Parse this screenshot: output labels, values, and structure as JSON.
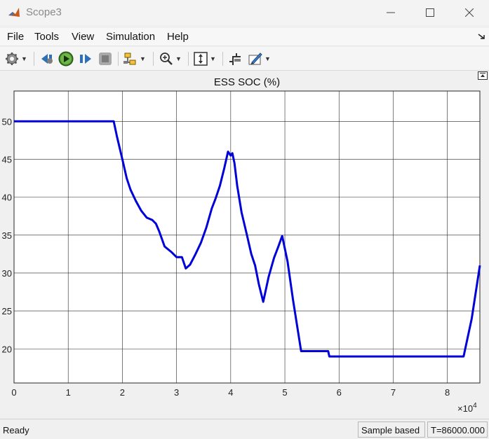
{
  "window": {
    "title": "Scope3",
    "buttons": {
      "minimize": "—",
      "maximize": "☐",
      "close": "✕"
    }
  },
  "menu": {
    "items": [
      "File",
      "Tools",
      "View",
      "Simulation",
      "Help"
    ]
  },
  "toolbar": {
    "icons": [
      "settings-icon",
      "step-back-icon",
      "run-icon",
      "step-forward-icon",
      "stop-icon",
      "highlight-block-icon",
      "zoom-icon",
      "scale-icon",
      "cursor-measure-icon",
      "style-icon"
    ]
  },
  "status": {
    "left": "Ready",
    "mode": "Sample based",
    "time": "T=86000.000"
  },
  "colors": {
    "line": "#0000d8",
    "plot_bg": "#ffffff",
    "grid": "#262626"
  },
  "chart_data": {
    "type": "line",
    "title": "ESS SOC (%)",
    "xlabel": "",
    "ylabel": "",
    "x_multiplier": "10",
    "x_multiplier_exp": "4",
    "xlim": [
      0,
      8.6
    ],
    "ylim": [
      15.5,
      54
    ],
    "x_ticks": [
      "0",
      "1",
      "2",
      "3",
      "4",
      "5",
      "6",
      "7",
      "8"
    ],
    "y_ticks": [
      "50",
      "45",
      "40",
      "35",
      "30",
      "25",
      "20"
    ],
    "grid": true,
    "series": [
      {
        "x": [
          0,
          1.84,
          1.9,
          2.0,
          2.08,
          2.15,
          2.25,
          2.35,
          2.45,
          2.55,
          2.62,
          2.68,
          2.78,
          2.9,
          3.0,
          3.1,
          3.17,
          3.25,
          3.35,
          3.45,
          3.55,
          3.65,
          3.72,
          3.8,
          3.88,
          3.95,
          4.0,
          4.03,
          4.07,
          4.12,
          4.2,
          4.3,
          4.38,
          4.45,
          4.52,
          4.6,
          4.7,
          4.8,
          4.88,
          4.95,
          5.05,
          5.15,
          5.3,
          5.8,
          5.82,
          8.3,
          8.45,
          8.6
        ],
        "y": [
          50,
          50,
          48,
          45,
          42.5,
          41,
          39.5,
          38.2,
          37.3,
          37,
          36.5,
          35.5,
          33.5,
          32.8,
          32.1,
          32.1,
          30.6,
          31.1,
          32.5,
          34,
          36,
          38.5,
          39.8,
          41.5,
          43.8,
          46,
          45.5,
          45.8,
          44.5,
          41.5,
          38,
          35,
          32.5,
          31,
          28.5,
          26.2,
          29.5,
          32,
          33.5,
          34.9,
          31.5,
          26.5,
          19.7,
          19.7,
          19,
          19,
          24,
          31
        ]
      }
    ]
  }
}
